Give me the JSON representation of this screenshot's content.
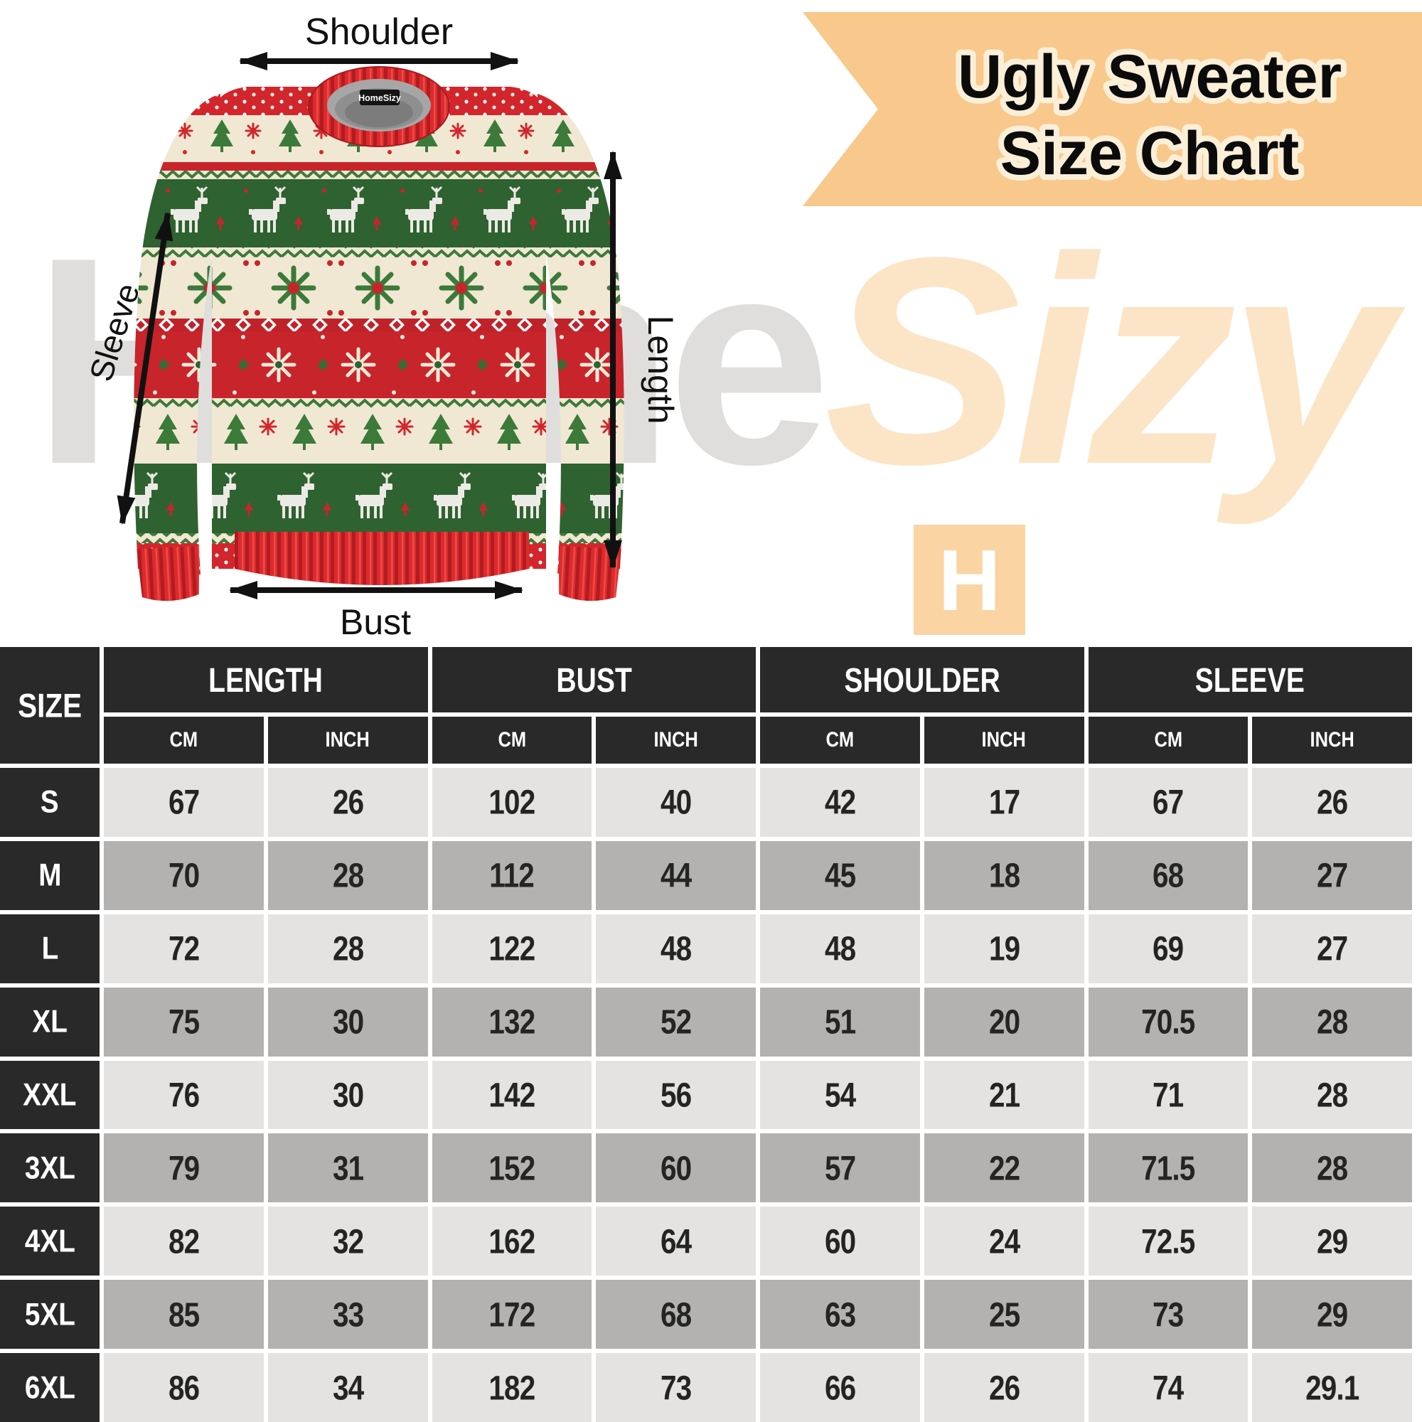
{
  "banner": {
    "title_line1": "Ugly Sweater",
    "title_line2": "Size Chart"
  },
  "watermark": {
    "part_gray": "Home",
    "part_orange": "Sizy",
    "badge_letter": "H"
  },
  "diagram": {
    "collar_tag": "HomeSizy",
    "labels": {
      "shoulder": "Shoulder",
      "sleeve": "Sleeve",
      "length": "Length",
      "bust": "Bust"
    }
  },
  "colors": {
    "banner_bg": "#F9C88C",
    "banner_text_outline": "#FCEFD8",
    "header_bg": "#2A2929",
    "row_light": "#E4E3E1",
    "row_mid": "#B3B2B0",
    "sweater_red": "#D2262C",
    "sweater_green": "#2F6231",
    "sweater_cream": "#F1E8D4",
    "watermark_gray": "#DFDEDD",
    "watermark_orange": "#FCE5C6",
    "logo_bg": "#FBD4A4"
  },
  "table": {
    "corner_label": "SIZE",
    "groups": [
      "LENGTH",
      "BUST",
      "SHOULDER",
      "SLEEVE"
    ],
    "units": [
      "CM",
      "INCH"
    ],
    "rows": [
      {
        "size": "S",
        "values": [
          "67",
          "26",
          "102",
          "40",
          "42",
          "17",
          "67",
          "26"
        ]
      },
      {
        "size": "M",
        "values": [
          "70",
          "28",
          "112",
          "44",
          "45",
          "18",
          "68",
          "27"
        ]
      },
      {
        "size": "L",
        "values": [
          "72",
          "28",
          "122",
          "48",
          "48",
          "19",
          "69",
          "27"
        ]
      },
      {
        "size": "XL",
        "values": [
          "75",
          "30",
          "132",
          "52",
          "51",
          "20",
          "70.5",
          "28"
        ]
      },
      {
        "size": "XXL",
        "values": [
          "76",
          "30",
          "142",
          "56",
          "54",
          "21",
          "71",
          "28"
        ]
      },
      {
        "size": "3XL",
        "values": [
          "79",
          "31",
          "152",
          "60",
          "57",
          "22",
          "71.5",
          "28"
        ]
      },
      {
        "size": "4XL",
        "values": [
          "82",
          "32",
          "162",
          "64",
          "60",
          "24",
          "72.5",
          "29"
        ]
      },
      {
        "size": "5XL",
        "values": [
          "85",
          "33",
          "172",
          "68",
          "63",
          "25",
          "73",
          "29"
        ]
      },
      {
        "size": "6XL",
        "values": [
          "86",
          "34",
          "182",
          "73",
          "66",
          "26",
          "74",
          "29.1"
        ]
      }
    ]
  },
  "chart_data": {
    "type": "table",
    "title": "Ugly Sweater Size Chart",
    "columns": [
      "SIZE",
      "LENGTH CM",
      "LENGTH INCH",
      "BUST CM",
      "BUST INCH",
      "SHOULDER CM",
      "SHOULDER INCH",
      "SLEEVE CM",
      "SLEEVE INCH"
    ],
    "rows": [
      [
        "S",
        67,
        26,
        102,
        40,
        42,
        17,
        67,
        26
      ],
      [
        "M",
        70,
        28,
        112,
        44,
        45,
        18,
        68,
        27
      ],
      [
        "L",
        72,
        28,
        122,
        48,
        48,
        19,
        69,
        27
      ],
      [
        "XL",
        75,
        30,
        132,
        52,
        51,
        20,
        70.5,
        28
      ],
      [
        "XXL",
        76,
        30,
        142,
        56,
        54,
        21,
        71,
        28
      ],
      [
        "3XL",
        79,
        31,
        152,
        60,
        57,
        22,
        71.5,
        28
      ],
      [
        "4XL",
        82,
        32,
        162,
        64,
        60,
        24,
        72.5,
        29
      ],
      [
        "5XL",
        85,
        33,
        172,
        68,
        63,
        25,
        73,
        29
      ],
      [
        "6XL",
        86,
        34,
        182,
        73,
        66,
        26,
        74,
        29.1
      ]
    ]
  }
}
